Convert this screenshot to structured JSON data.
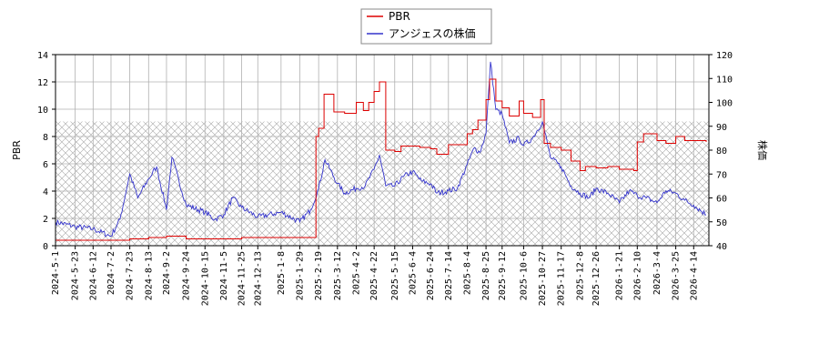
{
  "chart_data": {
    "type": "line",
    "title": "",
    "grid": true,
    "legend_position": "top-center",
    "colors": {
      "pbr": "#dd0000",
      "price": "#3333cc",
      "grid": "#b0b0b0",
      "hatch": "#a8a8a8"
    },
    "x_ticks": [
      "2024-5-1",
      "2024-5-23",
      "2024-6-12",
      "2024-7-2",
      "2024-7-23",
      "2024-8-13",
      "2024-9-2",
      "2024-9-24",
      "2024-10-15",
      "2024-11-5",
      "2024-11-25",
      "2024-12-13",
      "2025-1-8",
      "2025-1-29",
      "2025-2-19",
      "2025-3-12",
      "2025-4-2",
      "2025-4-22",
      "2025-5-15",
      "2025-6-4",
      "2025-6-24",
      "2025-7-14",
      "2025-8-4",
      "2025-8-25",
      "2025-9-12",
      "2025-10-6",
      "2025-10-27",
      "2025-11-17",
      "2025-12-8",
      "2025-12-26",
      "2026-1-21",
      "2026-2-10",
      "2026-3-4",
      "2026-3-25",
      "2026-4-14"
    ],
    "y_left": {
      "label": "PBR",
      "range": [
        0,
        14
      ],
      "ticks": [
        "0",
        "2",
        "4",
        "6",
        "8",
        "10",
        "12",
        "14"
      ]
    },
    "y_right": {
      "label": "株価",
      "range": [
        40,
        120
      ],
      "ticks": [
        "40",
        "50",
        "60",
        "70",
        "80",
        "90",
        "100",
        "110",
        "120"
      ]
    },
    "hatched_band": {
      "axis": "left",
      "from": 0,
      "to": 9.1
    },
    "series": [
      {
        "name": "PBR",
        "axis": "left",
        "points": [
          [
            "2024-5-1",
            0.4
          ],
          [
            "2024-6-12",
            0.4
          ],
          [
            "2024-7-2",
            0.4
          ],
          [
            "2024-7-23",
            0.5
          ],
          [
            "2024-8-13",
            0.6
          ],
          [
            "2024-9-2",
            0.7
          ],
          [
            "2024-9-24",
            0.5
          ],
          [
            "2024-10-15",
            0.5
          ],
          [
            "2024-11-5",
            0.5
          ],
          [
            "2024-11-25",
            0.6
          ],
          [
            "2024-12-13",
            0.6
          ],
          [
            "2025-1-8",
            0.6
          ],
          [
            "2025-1-29",
            0.6
          ],
          [
            "2025-2-12",
            0.6
          ],
          [
            "2025-2-16",
            8.0
          ],
          [
            "2025-2-19",
            8.6
          ],
          [
            "2025-2-25",
            11.1
          ],
          [
            "2025-3-8",
            9.8
          ],
          [
            "2025-3-20",
            9.7
          ],
          [
            "2025-4-2",
            10.5
          ],
          [
            "2025-4-10",
            9.9
          ],
          [
            "2025-4-16",
            10.5
          ],
          [
            "2025-4-22",
            11.3
          ],
          [
            "2025-4-28",
            12.0
          ],
          [
            "2025-5-5",
            7.0
          ],
          [
            "2025-5-15",
            6.9
          ],
          [
            "2025-5-22",
            7.3
          ],
          [
            "2025-6-4",
            7.3
          ],
          [
            "2025-6-12",
            7.2
          ],
          [
            "2025-6-24",
            7.1
          ],
          [
            "2025-7-1",
            6.7
          ],
          [
            "2025-7-14",
            7.4
          ],
          [
            "2025-8-4",
            8.2
          ],
          [
            "2025-8-10",
            8.5
          ],
          [
            "2025-8-16",
            9.2
          ],
          [
            "2025-8-25",
            10.7
          ],
          [
            "2025-8-29",
            12.2
          ],
          [
            "2025-9-5",
            10.6
          ],
          [
            "2025-9-12",
            10.1
          ],
          [
            "2025-9-20",
            9.5
          ],
          [
            "2025-10-1",
            10.6
          ],
          [
            "2025-10-6",
            9.7
          ],
          [
            "2025-10-16",
            9.4
          ],
          [
            "2025-10-25",
            10.7
          ],
          [
            "2025-10-29",
            7.5
          ],
          [
            "2025-11-5",
            7.2
          ],
          [
            "2025-11-17",
            7.0
          ],
          [
            "2025-11-28",
            6.2
          ],
          [
            "2025-12-8",
            5.5
          ],
          [
            "2025-12-14",
            5.8
          ],
          [
            "2025-12-26",
            5.7
          ],
          [
            "2026-1-8",
            5.8
          ],
          [
            "2026-1-21",
            5.6
          ],
          [
            "2026-2-6",
            5.5
          ],
          [
            "2026-2-10",
            7.6
          ],
          [
            "2026-2-17",
            8.2
          ],
          [
            "2026-3-4",
            7.7
          ],
          [
            "2026-3-14",
            7.5
          ],
          [
            "2026-3-25",
            8.0
          ],
          [
            "2026-4-4",
            7.7
          ],
          [
            "2026-4-14",
            7.7
          ],
          [
            "2026-4-28",
            7.6
          ]
        ]
      },
      {
        "name": "アンジェスの株価",
        "axis": "right",
        "points": [
          [
            "2024-5-1",
            50
          ],
          [
            "2024-5-23",
            48
          ],
          [
            "2024-6-12",
            47
          ],
          [
            "2024-7-2",
            44
          ],
          [
            "2024-7-12",
            51
          ],
          [
            "2024-7-23",
            70
          ],
          [
            "2024-8-1",
            60
          ],
          [
            "2024-8-13",
            68
          ],
          [
            "2024-8-22",
            73
          ],
          [
            "2024-9-2",
            55
          ],
          [
            "2024-9-8",
            77
          ],
          [
            "2024-9-24",
            57
          ],
          [
            "2024-10-15",
            54
          ],
          [
            "2024-10-26",
            51
          ],
          [
            "2024-11-5",
            53
          ],
          [
            "2024-11-15",
            60
          ],
          [
            "2024-11-25",
            56
          ],
          [
            "2024-12-13",
            52
          ],
          [
            "2025-1-8",
            54
          ],
          [
            "2025-1-29",
            50
          ],
          [
            "2025-2-10",
            55
          ],
          [
            "2025-2-19",
            64
          ],
          [
            "2025-2-26",
            76
          ],
          [
            "2025-3-12",
            66
          ],
          [
            "2025-3-20",
            62
          ],
          [
            "2025-4-2",
            64
          ],
          [
            "2025-4-12",
            65
          ],
          [
            "2025-4-22",
            72
          ],
          [
            "2025-4-28",
            78
          ],
          [
            "2025-5-5",
            65
          ],
          [
            "2025-5-15",
            65
          ],
          [
            "2025-5-25",
            69
          ],
          [
            "2025-6-4",
            71
          ],
          [
            "2025-6-14",
            67
          ],
          [
            "2025-6-24",
            66
          ],
          [
            "2025-7-1",
            62
          ],
          [
            "2025-7-14",
            63
          ],
          [
            "2025-7-24",
            64
          ],
          [
            "2025-8-4",
            74
          ],
          [
            "2025-8-12",
            81
          ],
          [
            "2025-8-18",
            79
          ],
          [
            "2025-8-25",
            87
          ],
          [
            "2025-8-30",
            117
          ],
          [
            "2025-9-5",
            97
          ],
          [
            "2025-9-12",
            95
          ],
          [
            "2025-9-20",
            83
          ],
          [
            "2025-10-1",
            85
          ],
          [
            "2025-10-6",
            82
          ],
          [
            "2025-10-16",
            85
          ],
          [
            "2025-10-27",
            92
          ],
          [
            "2025-11-5",
            77
          ],
          [
            "2025-11-17",
            73
          ],
          [
            "2025-11-28",
            65
          ],
          [
            "2025-12-8",
            62
          ],
          [
            "2025-12-18",
            60
          ],
          [
            "2025-12-26",
            64
          ],
          [
            "2026-1-8",
            62
          ],
          [
            "2026-1-21",
            58
          ],
          [
            "2026-2-1",
            63
          ],
          [
            "2026-2-10",
            61
          ],
          [
            "2026-2-20",
            60
          ],
          [
            "2026-3-4",
            58
          ],
          [
            "2026-3-14",
            63
          ],
          [
            "2026-3-25",
            62
          ],
          [
            "2026-4-4",
            59
          ],
          [
            "2026-4-14",
            57
          ],
          [
            "2026-4-28",
            53
          ]
        ]
      }
    ]
  }
}
